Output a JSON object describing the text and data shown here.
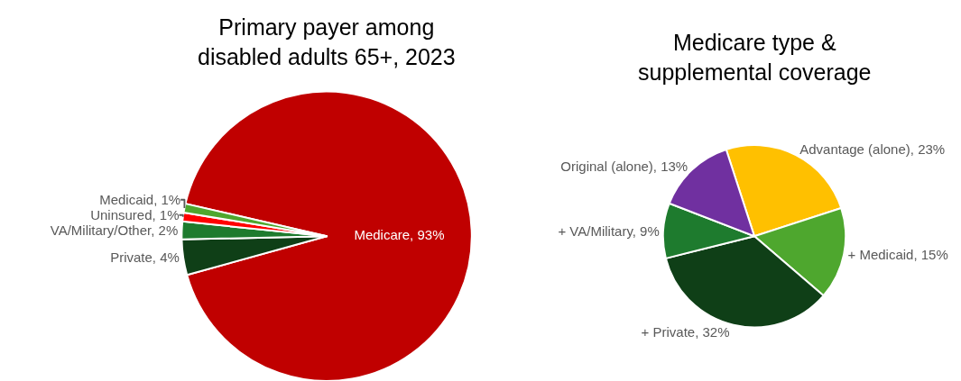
{
  "chart_data": [
    {
      "type": "pie",
      "title": "Primary payer among disabled adults 65+, 2023",
      "categories": [
        "Medicare",
        "Private",
        "VA/Military/Other",
        "Uninsured",
        "Medicaid"
      ],
      "values": [
        93,
        4,
        2,
        1,
        1
      ],
      "value_labels": [
        "93%",
        "4%",
        "2%",
        "1%",
        "1%"
      ],
      "colors": [
        "#c00000",
        "#0f3f17",
        "#1e7b2e",
        "#ff0000",
        "#4ea72e"
      ]
    },
    {
      "type": "pie",
      "title": "Medicare type & supplemental coverage",
      "categories": [
        "Advantage (alone)",
        "+ Medicaid",
        "+ Private",
        "+ VA/Military",
        "Original (alone)"
      ],
      "values": [
        23,
        15,
        32,
        9,
        13
      ],
      "value_labels": [
        "23%",
        "15%",
        "32%",
        "9%",
        "13%"
      ],
      "colors": [
        "#ffc000",
        "#4ea72e",
        "#0f3f17",
        "#1e7b2e",
        "#7030a0"
      ]
    }
  ]
}
